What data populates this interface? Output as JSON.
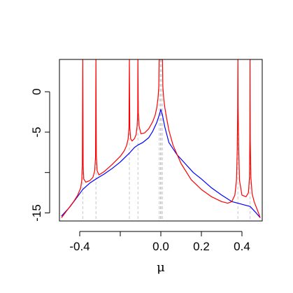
{
  "chart_data": {
    "type": "line",
    "title": "",
    "xlabel": "μ",
    "ylabel": "",
    "xlim": [
      -0.5,
      0.5
    ],
    "ylim": [
      -16,
      4
    ],
    "x_ticks": [
      {
        "value": -0.4,
        "label": "-0.4"
      },
      {
        "value": 0.0,
        "label": "0.0"
      },
      {
        "value": 0.2,
        "label": "0.2"
      },
      {
        "value": 0.4,
        "label": "0.4"
      }
    ],
    "x_minor_ticks": [
      -0.2
    ],
    "y_ticks": [
      {
        "value": 0,
        "label": "0"
      },
      {
        "value": -5,
        "label": "-5"
      },
      {
        "value": -15,
        "label": "-15"
      }
    ],
    "y_minor_ticks": [
      -10
    ],
    "grid": false,
    "legend": "none",
    "eigenvalue_lines": [
      -0.385,
      -0.32,
      -0.155,
      -0.113,
      -0.008,
      -0.002,
      0.002,
      0.008,
      0.38,
      0.44
    ],
    "series": [
      {
        "color": "#0000ff",
        "x": [
          -0.49,
          -0.45,
          -0.42,
          -0.385,
          -0.35,
          -0.32,
          -0.28,
          -0.24,
          -0.2,
          -0.155,
          -0.13,
          -0.113,
          -0.09,
          -0.06,
          -0.04,
          -0.02,
          -0.008,
          0.0,
          0.008,
          0.02,
          0.04,
          0.08,
          0.12,
          0.16,
          0.2,
          0.25,
          0.3,
          0.35,
          0.38,
          0.41,
          0.44,
          0.47,
          0.49
        ],
        "y": [
          -15.4,
          -14.3,
          -13.3,
          -12.1,
          -11.3,
          -10.8,
          -10.2,
          -9.5,
          -8.7,
          -7.6,
          -6.9,
          -6.6,
          -6.3,
          -5.7,
          -4.9,
          -3.8,
          -2.9,
          -2.2,
          -2.9,
          -4.4,
          -6.3,
          -7.8,
          -8.9,
          -10.0,
          -10.8,
          -11.9,
          -12.8,
          -13.6,
          -13.8,
          -14.0,
          -14.2,
          -15.0,
          -15.6
        ]
      },
      {
        "color": "#ff0000",
        "x": [
          -0.49,
          -0.46,
          -0.43,
          -0.41,
          -0.395,
          -0.39,
          -0.387,
          -0.385,
          -0.383,
          -0.38,
          -0.37,
          -0.35,
          -0.335,
          -0.326,
          -0.322,
          -0.32,
          -0.318,
          -0.314,
          -0.305,
          -0.28,
          -0.24,
          -0.2,
          -0.18,
          -0.168,
          -0.161,
          -0.157,
          -0.155,
          -0.153,
          -0.149,
          -0.142,
          -0.13,
          -0.122,
          -0.117,
          -0.114,
          -0.113,
          -0.111,
          -0.107,
          -0.098,
          -0.08,
          -0.06,
          -0.04,
          -0.028,
          -0.02,
          -0.014,
          -0.01,
          -0.008,
          -0.006,
          -0.004,
          -0.002,
          0.0,
          0.002,
          0.004,
          0.006,
          0.008,
          0.01,
          0.014,
          0.02,
          0.028,
          0.04,
          0.06,
          0.1,
          0.15,
          0.2,
          0.25,
          0.3,
          0.33,
          0.35,
          0.365,
          0.373,
          0.377,
          0.379,
          0.38,
          0.381,
          0.384,
          0.388,
          0.4,
          0.42,
          0.432,
          0.437,
          0.439,
          0.44,
          0.441,
          0.444,
          0.45,
          0.46,
          0.48,
          0.49
        ],
        "y": [
          -15.6,
          -14.6,
          -13.6,
          -12.8,
          -11.9,
          -11.0,
          -9.0,
          4.0,
          -9.0,
          -10.8,
          -11.2,
          -11.0,
          -10.6,
          -9.8,
          -8.0,
          4.0,
          -8.0,
          -9.8,
          -10.3,
          -9.9,
          -9.0,
          -8.0,
          -7.3,
          -6.6,
          -5.8,
          -4.4,
          4.0,
          -4.4,
          -5.8,
          -6.1,
          -5.8,
          -5.3,
          -4.3,
          -2.6,
          4.0,
          -2.6,
          -4.3,
          -5.2,
          -5.1,
          -4.6,
          -3.7,
          -2.9,
          -2.0,
          -0.8,
          0.6,
          4.0,
          4.0,
          4.0,
          4.0,
          4.0,
          4.0,
          4.0,
          4.0,
          4.0,
          0.6,
          -0.8,
          -2.0,
          -3.2,
          -4.8,
          -6.6,
          -8.9,
          -10.9,
          -12.1,
          -13.0,
          -13.6,
          -13.8,
          -13.6,
          -12.8,
          -11.0,
          -7.0,
          -2.0,
          4.0,
          -2.0,
          -7.0,
          -11.0,
          -12.8,
          -13.0,
          -12.5,
          -10.6,
          -6.0,
          4.0,
          -6.0,
          -10.6,
          -12.6,
          -13.6,
          -14.9,
          -15.6
        ]
      }
    ]
  }
}
